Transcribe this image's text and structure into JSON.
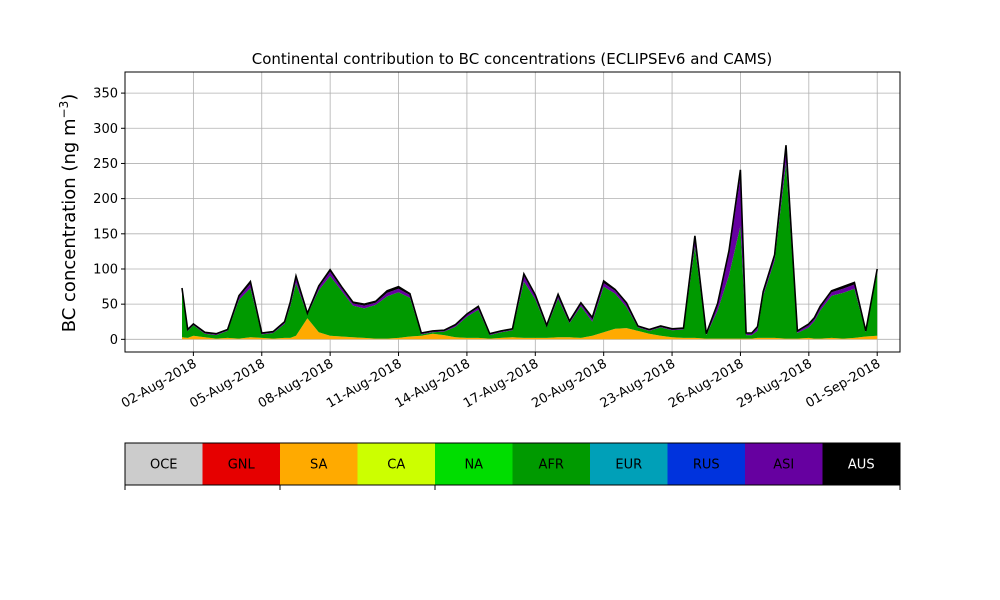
{
  "chart_data": {
    "type": "area",
    "stacked": true,
    "title": "Continental contribution to BC concentrations (ECLIPSEv6 and CAMS)",
    "ylabel": "BC concentration (ng m⁻³)",
    "ylabel_main": "BC concentration (ng m",
    "ylabel_sup": "−3",
    "ylabel_close": ")",
    "xlabel": "",
    "x_range": [
      "2018-07-30T00:00",
      "2018-09-02T00:00"
    ],
    "ylim": [
      -18,
      380
    ],
    "yticks": [
      0,
      50,
      100,
      150,
      200,
      250,
      300,
      350
    ],
    "xticks": [
      {
        "date": "2018-08-02",
        "label": "02-Aug-2018"
      },
      {
        "date": "2018-08-05",
        "label": "05-Aug-2018"
      },
      {
        "date": "2018-08-08",
        "label": "08-Aug-2018"
      },
      {
        "date": "2018-08-11",
        "label": "11-Aug-2018"
      },
      {
        "date": "2018-08-14",
        "label": "14-Aug-2018"
      },
      {
        "date": "2018-08-17",
        "label": "17-Aug-2018"
      },
      {
        "date": "2018-08-20",
        "label": "20-Aug-2018"
      },
      {
        "date": "2018-08-23",
        "label": "23-Aug-2018"
      },
      {
        "date": "2018-08-26",
        "label": "26-Aug-2018"
      },
      {
        "date": "2018-08-29",
        "label": "29-Aug-2018"
      },
      {
        "date": "2018-09-01",
        "label": "01-Sep-2018"
      }
    ],
    "grid": true,
    "legend_placement": "below",
    "x": [
      "2018-08-01T12:00",
      "2018-08-01T18:00",
      "2018-08-02T00:00",
      "2018-08-02T12:00",
      "2018-08-03T00:00",
      "2018-08-03T12:00",
      "2018-08-04T00:00",
      "2018-08-04T12:00",
      "2018-08-05T00:00",
      "2018-08-05T12:00",
      "2018-08-06T00:00",
      "2018-08-06T06:00",
      "2018-08-06T12:00",
      "2018-08-07T00:00",
      "2018-08-07T12:00",
      "2018-08-08T00:00",
      "2018-08-08T12:00",
      "2018-08-09T00:00",
      "2018-08-09T12:00",
      "2018-08-10T00:00",
      "2018-08-10T12:00",
      "2018-08-11T00:00",
      "2018-08-11T12:00",
      "2018-08-12T00:00",
      "2018-08-12T12:00",
      "2018-08-13T00:00",
      "2018-08-13T12:00",
      "2018-08-14T00:00",
      "2018-08-14T12:00",
      "2018-08-15T00:00",
      "2018-08-15T12:00",
      "2018-08-16T00:00",
      "2018-08-16T12:00",
      "2018-08-17T00:00",
      "2018-08-17T12:00",
      "2018-08-18T00:00",
      "2018-08-18T12:00",
      "2018-08-19T00:00",
      "2018-08-19T12:00",
      "2018-08-20T00:00",
      "2018-08-20T12:00",
      "2018-08-21T00:00",
      "2018-08-21T12:00",
      "2018-08-22T00:00",
      "2018-08-22T12:00",
      "2018-08-23T00:00",
      "2018-08-23T12:00",
      "2018-08-24T00:00",
      "2018-08-24T12:00",
      "2018-08-25T00:00",
      "2018-08-25T12:00",
      "2018-08-26T00:00",
      "2018-08-26T06:00",
      "2018-08-26T12:00",
      "2018-08-26T18:00",
      "2018-08-27T00:00",
      "2018-08-27T12:00",
      "2018-08-28T00:00",
      "2018-08-28T12:00",
      "2018-08-29T00:00",
      "2018-08-29T06:00",
      "2018-08-29T12:00",
      "2018-08-30T00:00",
      "2018-08-30T12:00",
      "2018-08-31T00:00",
      "2018-08-31T12:00",
      "2018-09-01T00:00"
    ],
    "series": [
      {
        "name": "SA",
        "color": "#ffaa00",
        "values": [
          3,
          2,
          5,
          3,
          1,
          2,
          1,
          3,
          2,
          1,
          2,
          2,
          5,
          30,
          10,
          5,
          4,
          3,
          2,
          1,
          1,
          2,
          4,
          5,
          8,
          6,
          3,
          2,
          2,
          1,
          2,
          3,
          2,
          2,
          2,
          3,
          3,
          2,
          5,
          10,
          15,
          16,
          12,
          8,
          5,
          3,
          2,
          2,
          1,
          1,
          1,
          1,
          1,
          1,
          2,
          2,
          2,
          1,
          1,
          2,
          1,
          1,
          2,
          1,
          2,
          4,
          5
        ]
      },
      {
        "name": "AFR",
        "color": "#009a00",
        "values": [
          65,
          10,
          15,
          5,
          5,
          10,
          55,
          70,
          5,
          8,
          20,
          45,
          75,
          5,
          60,
          85,
          65,
          45,
          42,
          48,
          60,
          65,
          55,
          2,
          2,
          5,
          15,
          30,
          40,
          5,
          8,
          10,
          80,
          55,
          15,
          55,
          20,
          45,
          20,
          65,
          50,
          30,
          5,
          4,
          12,
          10,
          12,
          130,
          5,
          40,
          90,
          160,
          5,
          5,
          10,
          60,
          110,
          250,
          8,
          15,
          25,
          40,
          60,
          65,
          70,
          6,
          90
        ]
      },
      {
        "name": "ASI",
        "color": "#6600a0",
        "values": [
          3,
          1,
          1,
          1,
          1,
          1,
          4,
          6,
          1,
          1,
          2,
          4,
          7,
          1,
          4,
          6,
          4,
          3,
          4,
          3,
          5,
          5,
          4,
          1,
          1,
          1,
          2,
          3,
          3,
          1,
          1,
          1,
          8,
          4,
          2,
          4,
          2,
          3,
          4,
          5,
          4,
          4,
          1,
          1,
          1,
          1,
          1,
          12,
          1,
          8,
          30,
          70,
          2,
          2,
          4,
          4,
          6,
          20,
          2,
          3,
          3,
          4,
          5,
          6,
          6,
          1,
          3
        ]
      },
      {
        "name": "AUS",
        "color": "#000000",
        "values": [
          2,
          1,
          1,
          1,
          1,
          1,
          2,
          3,
          1,
          1,
          1,
          2,
          3,
          1,
          2,
          3,
          2,
          2,
          2,
          2,
          3,
          3,
          2,
          1,
          1,
          1,
          1,
          1,
          2,
          1,
          1,
          1,
          3,
          2,
          1,
          2,
          1,
          2,
          2,
          3,
          2,
          2,
          1,
          1,
          1,
          1,
          1,
          3,
          1,
          2,
          5,
          10,
          1,
          1,
          2,
          2,
          2,
          5,
          1,
          2,
          2,
          2,
          2,
          3,
          3,
          1,
          2
        ]
      }
    ],
    "total_line_color": "#000000",
    "legend": {
      "entries": [
        {
          "label": "OCE",
          "color": "#cccccc"
        },
        {
          "label": "GNL",
          "color": "#e60000"
        },
        {
          "label": "SA",
          "color": "#ffaa00"
        },
        {
          "label": "CA",
          "color": "#ccff00"
        },
        {
          "label": "NA",
          "color": "#00dd00"
        },
        {
          "label": "AFR",
          "color": "#009a00"
        },
        {
          "label": "EUR",
          "color": "#00a0b8"
        },
        {
          "label": "RUS",
          "color": "#0033dd"
        },
        {
          "label": "ASI",
          "color": "#6600a0"
        },
        {
          "label": "AUS",
          "color": "#000000",
          "text_color": "#ffffff"
        }
      ]
    }
  }
}
